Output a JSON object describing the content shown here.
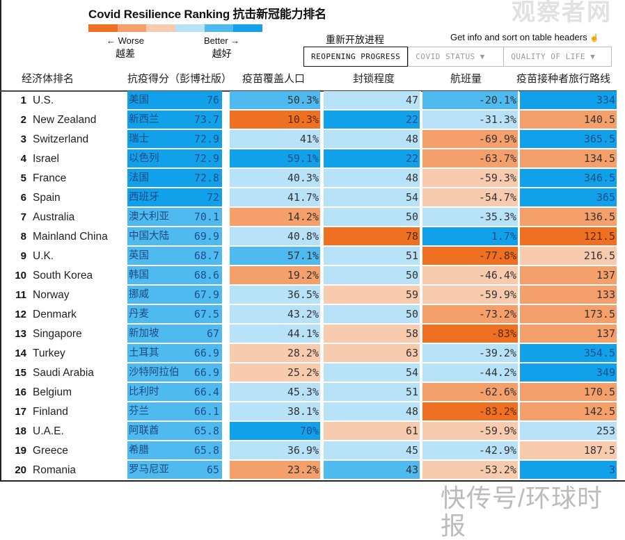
{
  "header": {
    "title": "Covid Resilience Ranking  抗击新冠能力排名",
    "legend": {
      "colors": [
        "#f07021",
        "#f5a06a",
        "#f9cbae",
        "#b8e2f8",
        "#4fbaf0",
        "#11a1ea"
      ],
      "worse_label": "← Worse",
      "worse_cn": "越差",
      "better_label": "Better →",
      "better_cn": "越好"
    },
    "help_text": "Get info and sort on table headers",
    "help_icon": "pointer-hand-icon",
    "tabs_caption": "重新开放进程",
    "tabs": [
      {
        "label": "REOPENING PROGRESS",
        "active": true
      },
      {
        "label": "COVID STATUS ▼",
        "active": false
      },
      {
        "label": "QUALITY OF LIFE ▼",
        "active": false
      }
    ]
  },
  "columns": {
    "economy": "经济体排名",
    "score": "抗疫得分（彭博社版）",
    "vaccine": "疫苗覆盖人口",
    "lockdown": "封锁程度",
    "flights": "航班量",
    "travel": "疫苗接种者旅行路线"
  },
  "rows": [
    {
      "rank": "1",
      "country": "U.S.",
      "cn": "美国",
      "score": "76",
      "vaccine": "50.3%",
      "lockdown": "47",
      "flights": "-20.1%",
      "travel": "334",
      "levels": [
        6,
        5,
        4,
        5,
        6
      ]
    },
    {
      "rank": "2",
      "country": "New Zealand",
      "cn": "新西兰",
      "score": "73.7",
      "vaccine": "10.3%",
      "lockdown": "22",
      "flights": "-31.3%",
      "travel": "140.5",
      "levels": [
        6,
        1,
        6,
        4,
        2
      ]
    },
    {
      "rank": "3",
      "country": "Switzerland",
      "cn": "瑞士",
      "score": "72.9",
      "vaccine": "41%",
      "lockdown": "48",
      "flights": "-69.9%",
      "travel": "365.5",
      "levels": [
        6,
        4,
        4,
        2,
        6
      ]
    },
    {
      "rank": "4",
      "country": "Israel",
      "cn": "以色列",
      "score": "72.9",
      "vaccine": "59.1%",
      "lockdown": "22",
      "flights": "-63.7%",
      "travel": "134.5",
      "levels": [
        6,
        6,
        6,
        2,
        2
      ]
    },
    {
      "rank": "5",
      "country": "France",
      "cn": "法国",
      "score": "72.8",
      "vaccine": "40.3%",
      "lockdown": "48",
      "flights": "-59.3%",
      "travel": "346.5",
      "levels": [
        6,
        4,
        4,
        3,
        6
      ]
    },
    {
      "rank": "6",
      "country": "Spain",
      "cn": "西班牙",
      "score": "72",
      "vaccine": "41.7%",
      "lockdown": "54",
      "flights": "-54.7%",
      "travel": "365",
      "levels": [
        6,
        4,
        4,
        3,
        6
      ]
    },
    {
      "rank": "7",
      "country": "Australia",
      "cn": "澳大利亚",
      "score": "70.1",
      "vaccine": "14.2%",
      "lockdown": "50",
      "flights": "-35.3%",
      "travel": "136.5",
      "levels": [
        5,
        2,
        4,
        4,
        2
      ]
    },
    {
      "rank": "8",
      "country": "Mainland China",
      "cn": "中国大陆",
      "score": "69.9",
      "vaccine": "40.8%",
      "lockdown": "78",
      "flights": "1.7%",
      "travel": "121.5",
      "levels": [
        5,
        4,
        1,
        6,
        1
      ]
    },
    {
      "rank": "9",
      "country": "U.K.",
      "cn": "英国",
      "score": "68.7",
      "vaccine": "57.1%",
      "lockdown": "51",
      "flights": "-77.8%",
      "travel": "216.5",
      "levels": [
        5,
        5,
        4,
        1,
        3
      ]
    },
    {
      "rank": "10",
      "country": "South Korea",
      "cn": "韩国",
      "score": "68.6",
      "vaccine": "19.2%",
      "lockdown": "50",
      "flights": "-46.4%",
      "travel": "137",
      "levels": [
        5,
        2,
        4,
        3,
        2
      ]
    },
    {
      "rank": "11",
      "country": "Norway",
      "cn": "挪威",
      "score": "67.9",
      "vaccine": "36.5%",
      "lockdown": "59",
      "flights": "-59.9%",
      "travel": "133",
      "levels": [
        5,
        4,
        3,
        3,
        2
      ]
    },
    {
      "rank": "12",
      "country": "Denmark",
      "cn": "丹麦",
      "score": "67.5",
      "vaccine": "43.2%",
      "lockdown": "50",
      "flights": "-73.2%",
      "travel": "173.5",
      "levels": [
        5,
        4,
        4,
        2,
        2
      ]
    },
    {
      "rank": "13",
      "country": "Singapore",
      "cn": "新加坡",
      "score": "67",
      "vaccine": "44.1%",
      "lockdown": "58",
      "flights": "-83%",
      "travel": "137",
      "levels": [
        5,
        4,
        3,
        1,
        2
      ]
    },
    {
      "rank": "14",
      "country": "Turkey",
      "cn": "土耳其",
      "score": "66.9",
      "vaccine": "28.2%",
      "lockdown": "63",
      "flights": "-39.2%",
      "travel": "354.5",
      "levels": [
        5,
        3,
        3,
        4,
        6
      ]
    },
    {
      "rank": "15",
      "country": "Saudi Arabia",
      "cn": "沙特阿拉伯",
      "score": "66.9",
      "vaccine": "25.2%",
      "lockdown": "54",
      "flights": "-44.2%",
      "travel": "349",
      "levels": [
        5,
        3,
        4,
        4,
        6
      ]
    },
    {
      "rank": "16",
      "country": "Belgium",
      "cn": "比利时",
      "score": "66.4",
      "vaccine": "45.3%",
      "lockdown": "51",
      "flights": "-62.6%",
      "travel": "170.5",
      "levels": [
        5,
        4,
        4,
        2,
        2
      ]
    },
    {
      "rank": "17",
      "country": "Finland",
      "cn": "芬兰",
      "score": "66.1",
      "vaccine": "38.1%",
      "lockdown": "48",
      "flights": "-83.2%",
      "travel": "142.5",
      "levels": [
        5,
        4,
        4,
        1,
        2
      ]
    },
    {
      "rank": "18",
      "country": "U.A.E.",
      "cn": "阿联酋",
      "score": "65.8",
      "vaccine": "70%",
      "lockdown": "61",
      "flights": "-59.9%",
      "travel": "253",
      "levels": [
        5,
        6,
        3,
        3,
        4
      ]
    },
    {
      "rank": "19",
      "country": "Greece",
      "cn": "希腊",
      "score": "65.8",
      "vaccine": "36.9%",
      "lockdown": "45",
      "flights": "-42.9%",
      "travel": "187.5",
      "levels": [
        5,
        4,
        4,
        4,
        3
      ]
    },
    {
      "rank": "20",
      "country": "Romania",
      "cn": "罗马尼亚",
      "score": "65",
      "vaccine": "23.2%",
      "lockdown": "43",
      "flights": "-53.2%",
      "travel": "3",
      "levels": [
        5,
        2,
        5,
        3,
        6
      ]
    }
  ],
  "watermarks": {
    "top": "观察者网",
    "bottom": "快传号/环球时报"
  }
}
